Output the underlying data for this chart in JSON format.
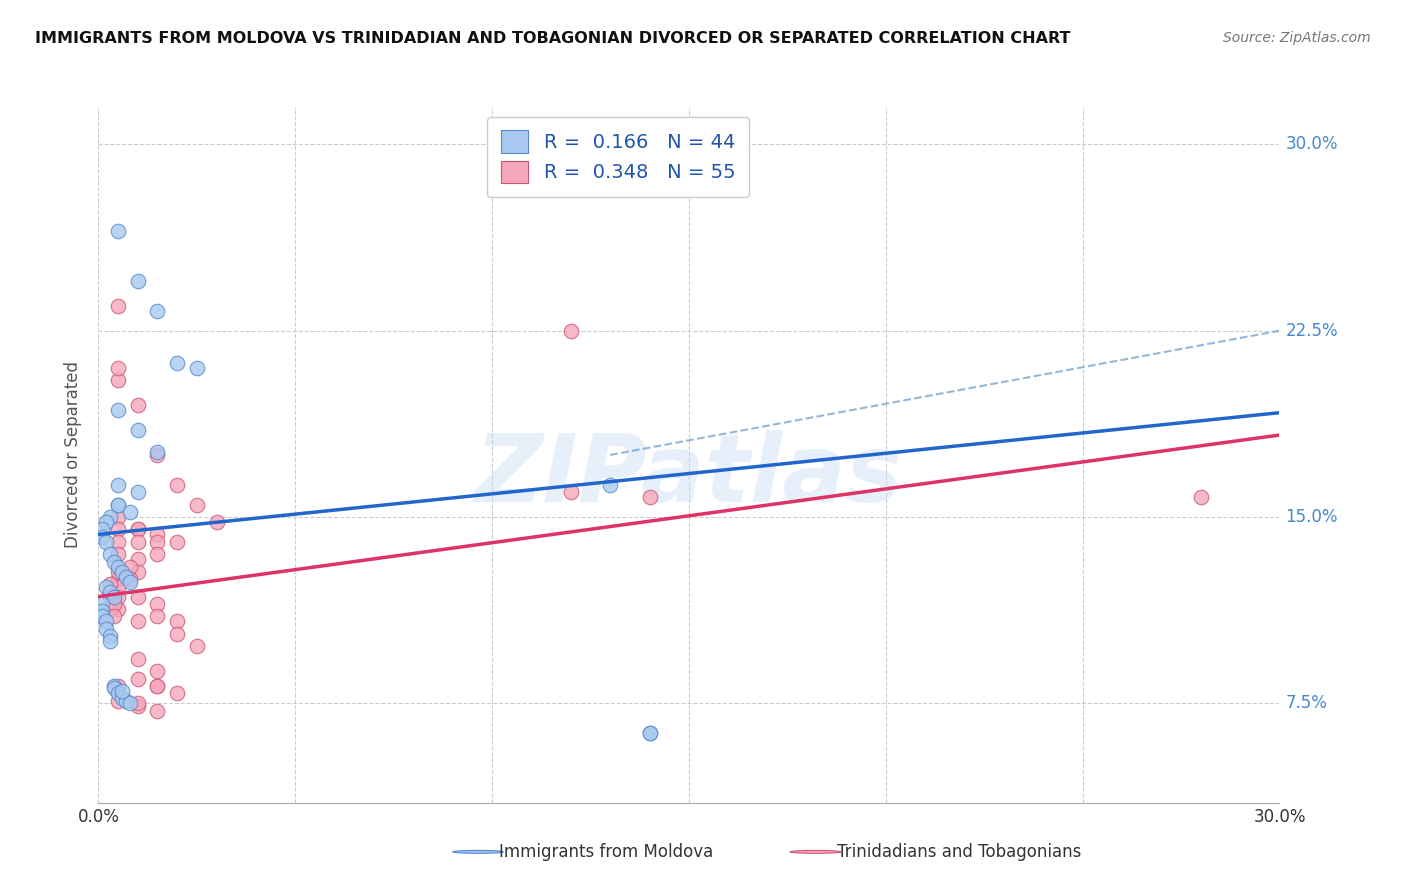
{
  "title": "IMMIGRANTS FROM MOLDOVA VS TRINIDADIAN AND TOBAGONIAN DIVORCED OR SEPARATED CORRELATION CHART",
  "source": "Source: ZipAtlas.com",
  "ylabel": "Divorced or Separated",
  "xlim": [
    0.0,
    0.3
  ],
  "ylim": [
    0.035,
    0.315
  ],
  "yticks": [
    0.075,
    0.15,
    0.225,
    0.3
  ],
  "ytick_labels": [
    "7.5%",
    "15.0%",
    "22.5%",
    "30.0%"
  ],
  "xticks": [
    0.0,
    0.05,
    0.1,
    0.15,
    0.2,
    0.25,
    0.3
  ],
  "series1_color": "#a8c8f0",
  "series2_color": "#f5a8bb",
  "series1_edge": "#5588cc",
  "series2_edge": "#cc5577",
  "line1_color": "#2266cc",
  "line2_color": "#dd3366",
  "dash_color": "#6699cc",
  "R1": 0.166,
  "N1": 44,
  "R2": 0.348,
  "N2": 55,
  "legend1": "Immigrants from Moldova",
  "legend2": "Trinidadians and Tobagonians",
  "watermark": "ZIPatlas",
  "blue_line": [
    [
      0.0,
      0.143
    ],
    [
      0.3,
      0.192
    ]
  ],
  "pink_line": [
    [
      0.0,
      0.118
    ],
    [
      0.3,
      0.183
    ]
  ],
  "dash_line": [
    [
      0.13,
      0.175
    ],
    [
      0.3,
      0.225
    ]
  ],
  "blue_x": [
    0.005,
    0.01,
    0.015,
    0.02,
    0.025,
    0.005,
    0.01,
    0.015,
    0.005,
    0.01,
    0.005,
    0.005,
    0.008,
    0.003,
    0.002,
    0.001,
    0.001,
    0.002,
    0.003,
    0.004,
    0.005,
    0.006,
    0.007,
    0.008,
    0.002,
    0.003,
    0.004,
    0.001,
    0.001,
    0.001,
    0.002,
    0.002,
    0.003,
    0.003,
    0.004,
    0.004,
    0.005,
    0.006,
    0.007,
    0.008,
    0.006,
    0.13,
    0.14,
    0.14
  ],
  "blue_y": [
    0.265,
    0.245,
    0.233,
    0.212,
    0.21,
    0.193,
    0.185,
    0.176,
    0.163,
    0.16,
    0.155,
    0.155,
    0.152,
    0.15,
    0.148,
    0.145,
    0.142,
    0.14,
    0.135,
    0.132,
    0.13,
    0.128,
    0.126,
    0.124,
    0.122,
    0.12,
    0.118,
    0.115,
    0.112,
    0.11,
    0.108,
    0.105,
    0.102,
    0.1,
    0.082,
    0.081,
    0.079,
    0.077,
    0.076,
    0.075,
    0.08,
    0.163,
    0.063,
    0.063
  ],
  "pink_x": [
    0.005,
    0.01,
    0.015,
    0.02,
    0.025,
    0.03,
    0.005,
    0.01,
    0.015,
    0.02,
    0.005,
    0.01,
    0.015,
    0.005,
    0.01,
    0.015,
    0.005,
    0.01,
    0.005,
    0.01,
    0.005,
    0.01,
    0.005,
    0.005,
    0.005,
    0.005,
    0.008,
    0.008,
    0.003,
    0.003,
    0.003,
    0.004,
    0.004,
    0.01,
    0.015,
    0.015,
    0.02,
    0.02,
    0.025,
    0.01,
    0.015,
    0.12,
    0.14,
    0.12,
    0.28,
    0.01,
    0.015,
    0.02,
    0.005,
    0.01,
    0.015,
    0.015,
    0.01,
    0.005,
    0.005
  ],
  "pink_y": [
    0.205,
    0.195,
    0.175,
    0.163,
    0.155,
    0.148,
    0.21,
    0.145,
    0.143,
    0.14,
    0.15,
    0.145,
    0.14,
    0.145,
    0.14,
    0.135,
    0.14,
    0.133,
    0.135,
    0.128,
    0.125,
    0.118,
    0.128,
    0.122,
    0.118,
    0.113,
    0.13,
    0.125,
    0.123,
    0.118,
    0.113,
    0.115,
    0.11,
    0.108,
    0.115,
    0.11,
    0.108,
    0.103,
    0.098,
    0.093,
    0.088,
    0.16,
    0.158,
    0.225,
    0.158,
    0.085,
    0.082,
    0.079,
    0.076,
    0.074,
    0.072,
    0.082,
    0.075,
    0.082,
    0.235
  ]
}
